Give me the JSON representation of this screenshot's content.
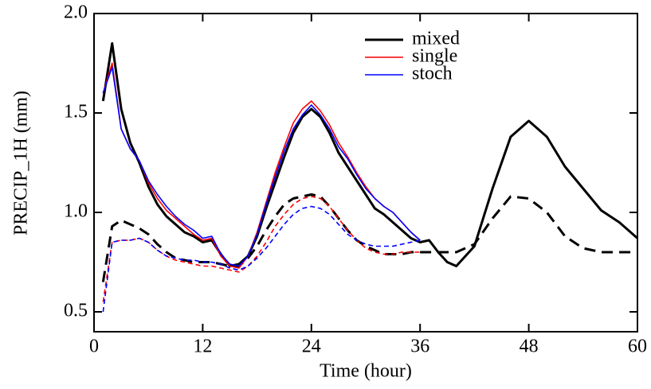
{
  "chart_data": {
    "type": "line",
    "x_label": "Time (hour)",
    "y_label": "PRECIP_1H (mm)",
    "x": [
      1,
      2,
      3,
      4,
      5,
      6,
      7,
      8,
      9,
      10,
      11,
      12,
      13,
      14,
      15,
      16,
      17,
      18,
      19,
      20,
      21,
      22,
      23,
      24,
      25,
      26,
      27,
      28,
      29,
      30,
      31,
      32,
      33,
      34,
      35,
      36,
      37,
      38,
      39,
      40,
      42,
      44,
      46,
      48,
      50,
      52,
      54,
      56,
      58,
      60
    ],
    "series": [
      {
        "name": "mixed",
        "color": "#000000",
        "line_width": 3,
        "values": [
          1.56,
          1.85,
          1.52,
          1.35,
          1.25,
          1.13,
          1.04,
          0.98,
          0.94,
          0.9,
          0.88,
          0.85,
          0.86,
          0.79,
          0.73,
          0.74,
          0.78,
          0.88,
          1.02,
          1.15,
          1.28,
          1.4,
          1.48,
          1.52,
          1.48,
          1.4,
          1.3,
          1.23,
          1.16,
          1.09,
          1.02,
          0.99,
          0.95,
          0.91,
          0.87,
          0.85,
          0.86,
          0.8,
          0.75,
          0.73,
          0.83,
          1.12,
          1.38,
          1.46,
          1.38,
          1.23,
          1.12,
          1.01,
          0.95,
          0.87
        ],
        "dashed_values": [
          0.65,
          0.93,
          0.96,
          0.94,
          0.92,
          0.89,
          0.84,
          0.8,
          0.77,
          0.76,
          0.75,
          0.75,
          0.75,
          0.74,
          0.73,
          0.73,
          0.77,
          0.83,
          0.91,
          0.98,
          1.04,
          1.07,
          1.08,
          1.09,
          1.08,
          1.03,
          0.97,
          0.91,
          0.86,
          0.83,
          0.81,
          0.79,
          0.79,
          0.79,
          0.8,
          0.8,
          0.8,
          0.8,
          0.8,
          0.8,
          0.84,
          0.97,
          1.08,
          1.07,
          1.0,
          0.88,
          0.82,
          0.8,
          0.8,
          0.8
        ]
      },
      {
        "name": "single",
        "color": "#ff0000",
        "line_width": 1.6,
        "values": [
          1.6,
          1.75,
          1.42,
          1.32,
          1.26,
          1.15,
          1.07,
          1.01,
          0.97,
          0.93,
          0.89,
          0.86,
          0.87,
          0.78,
          0.73,
          0.72,
          0.78,
          0.9,
          1.05,
          1.2,
          1.33,
          1.45,
          1.52,
          1.56,
          1.51,
          1.44,
          1.35,
          1.28,
          1.2,
          1.13,
          1.07,
          1.03,
          1.0,
          0.95,
          0.9,
          0.86,
          null,
          null,
          null,
          null,
          null,
          null,
          null,
          null,
          null,
          null,
          null,
          null,
          null,
          null
        ],
        "dashed_values": [
          0.55,
          0.85,
          0.86,
          0.86,
          0.87,
          0.85,
          0.81,
          0.78,
          0.76,
          0.75,
          0.74,
          0.73,
          0.73,
          0.72,
          0.71,
          0.7,
          0.73,
          0.78,
          0.85,
          0.93,
          0.99,
          1.04,
          1.07,
          1.08,
          1.07,
          1.03,
          0.97,
          0.91,
          0.86,
          0.82,
          0.8,
          0.79,
          0.79,
          0.8,
          0.8,
          0.8,
          null,
          null,
          null,
          null,
          null,
          null,
          null,
          null,
          null,
          null,
          null,
          null,
          null,
          null
        ]
      },
      {
        "name": "stoch",
        "color": "#0000ff",
        "line_width": 1.6,
        "values": [
          1.6,
          1.73,
          1.42,
          1.32,
          1.26,
          1.16,
          1.09,
          1.03,
          0.98,
          0.94,
          0.91,
          0.87,
          0.88,
          0.79,
          0.74,
          0.73,
          0.78,
          0.89,
          1.04,
          1.18,
          1.31,
          1.42,
          1.49,
          1.54,
          1.49,
          1.42,
          1.33,
          1.27,
          1.19,
          1.12,
          1.07,
          1.03,
          1.0,
          0.95,
          0.9,
          0.86,
          null,
          null,
          null,
          null,
          null,
          null,
          null,
          null,
          null,
          null,
          null,
          null,
          null,
          null
        ],
        "dashed_values": [
          0.5,
          0.85,
          0.86,
          0.86,
          0.87,
          0.85,
          0.81,
          0.78,
          0.77,
          0.76,
          0.76,
          0.75,
          0.75,
          0.74,
          0.72,
          0.71,
          0.73,
          0.77,
          0.82,
          0.88,
          0.94,
          0.99,
          1.02,
          1.03,
          1.02,
          0.99,
          0.94,
          0.89,
          0.86,
          0.84,
          0.83,
          0.83,
          0.83,
          0.84,
          0.85,
          0.86,
          null,
          null,
          null,
          null,
          null,
          null,
          null,
          null,
          null,
          null,
          null,
          null,
          null,
          null
        ]
      }
    ],
    "xlim": [
      0,
      60
    ],
    "xticks": [
      0,
      12,
      24,
      36,
      48,
      60
    ],
    "ylim": [
      0.4,
      2.0
    ],
    "yticks": [
      0.5,
      {
        "value": 1,
        "label": "1.0"
      },
      1.5,
      {
        "value": 2,
        "label": "2.0"
      }
    ]
  }
}
